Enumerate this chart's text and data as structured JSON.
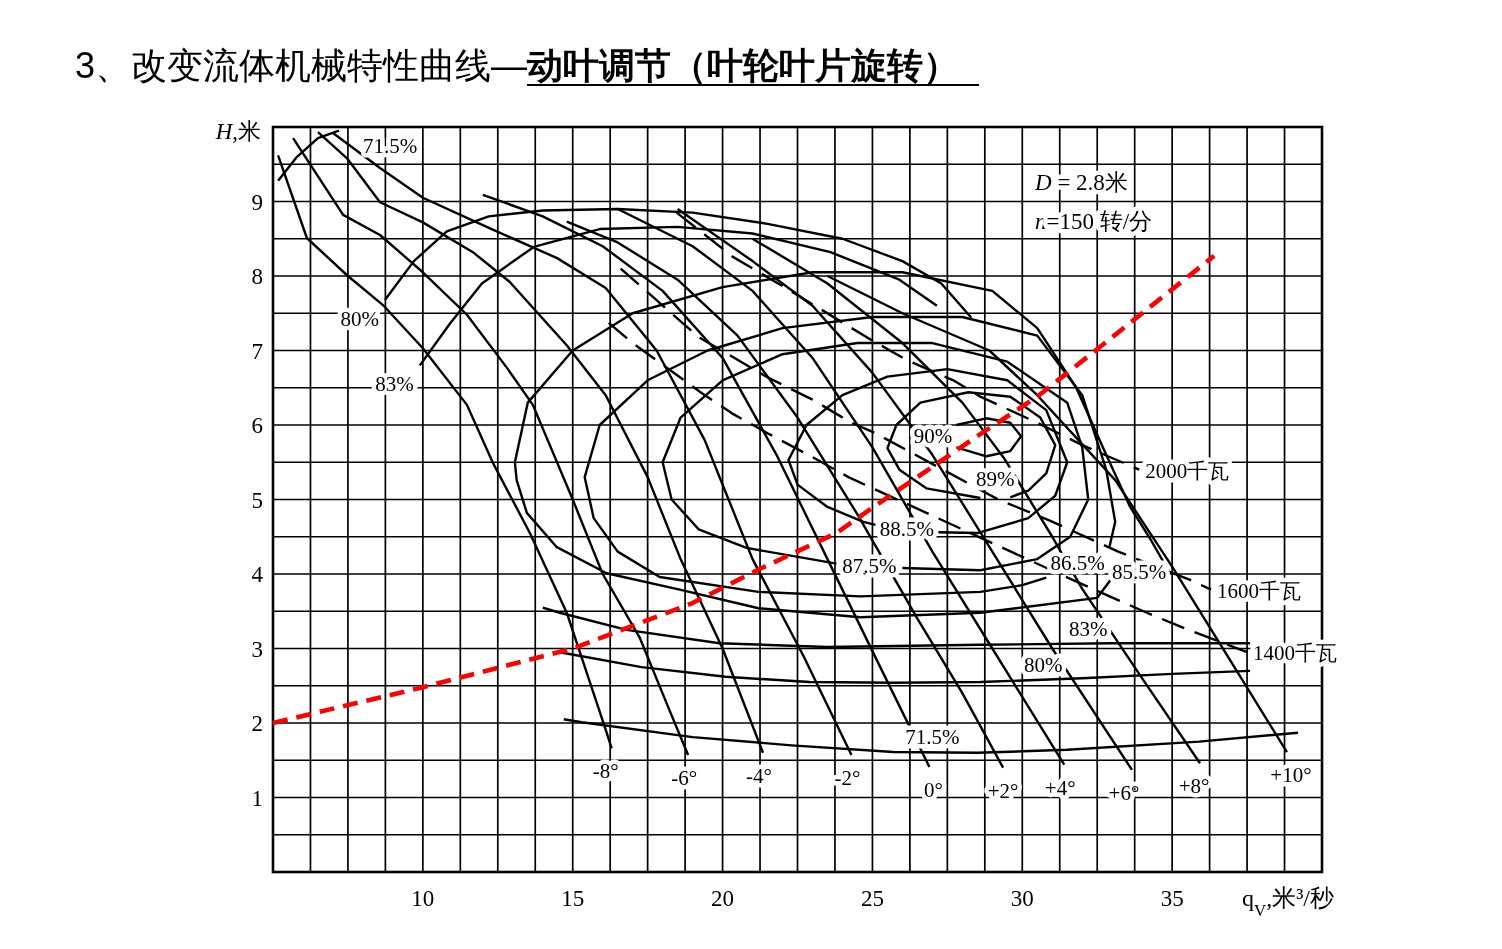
{
  "chart_data": {
    "type": "line",
    "title": "3、改变流体机械特性曲线—**动叶调节（叶轮叶片旋转）**",
    "xlabel": "q$_{V}$,米³/秒",
    "ylabel": "*H*,米",
    "annotations": [
      "*D* = 2.8米",
      "*n*=150 转/分"
    ],
    "xlim": [
      5,
      40
    ],
    "ylim": [
      0,
      10
    ],
    "xticks": [
      {
        "value": 6.25,
        "label": null
      },
      {
        "value": 7.5,
        "label": null
      },
      {
        "value": 8.75,
        "label": null
      },
      10,
      {
        "value": 11.25,
        "label": null
      },
      {
        "value": 12.5,
        "label": null
      },
      {
        "value": 13.75,
        "label": null
      },
      15,
      {
        "value": 16.25,
        "label": null
      },
      {
        "value": 17.5,
        "label": null
      },
      {
        "value": 18.75,
        "label": null
      },
      20,
      {
        "value": 21.25,
        "label": null
      },
      {
        "value": 22.5,
        "label": null
      },
      {
        "value": 23.75,
        "label": null
      },
      25,
      {
        "value": 26.25,
        "label": null
      },
      {
        "value": 27.5,
        "label": null
      },
      {
        "value": 28.75,
        "label": null
      },
      30,
      {
        "value": 31.25,
        "label": null
      },
      {
        "value": 32.5,
        "label": null
      },
      {
        "value": 33.75,
        "label": null
      },
      35,
      {
        "value": 36.25,
        "label": null
      },
      {
        "value": 37.5,
        "label": null
      },
      {
        "value": 38.75,
        "label": null
      }
    ],
    "yticks": [
      {
        "value": 0.5,
        "label": null
      },
      1,
      {
        "value": 1.5,
        "label": null
      },
      2,
      {
        "value": 2.5,
        "label": null
      },
      3,
      {
        "value": 3.5,
        "label": null
      },
      4,
      {
        "value": 4.5,
        "label": null
      },
      5,
      {
        "value": 5.5,
        "label": null
      },
      6,
      {
        "value": 6.5,
        "label": null
      },
      7,
      {
        "value": 7.5,
        "label": null
      },
      8,
      {
        "value": 8.5,
        "label": null
      },
      9,
      {
        "value": 9.5,
        "label": null
      }
    ],
    "grid": true,
    "series": [
      {
        "name": "-8°",
        "color": "#000000",
        "line_style": "solid",
        "x": [
          5.17,
          6.13,
          7.47,
          8.67,
          10.0,
          11.47,
          12.34,
          13.57,
          14.8,
          16.1,
          16.3
        ],
        "values": [
          9.62,
          8.51,
          8.01,
          7.61,
          7.03,
          6.27,
          5.49,
          4.55,
          3.48,
          1.91,
          1.66
        ]
      },
      {
        "name": "-6°",
        "color": "#000000",
        "line_style": "solid",
        "x": [
          5.67,
          7.34,
          8.57,
          10.0,
          11.47,
          12.8,
          13.67,
          15.0,
          16.0,
          17.23,
          18.2,
          18.85
        ],
        "values": [
          9.85,
          8.82,
          8.55,
          8.05,
          7.48,
          6.77,
          6.27,
          5.0,
          4.0,
          3.15,
          2.2,
          1.57
        ]
      },
      {
        "name": "-4°",
        "color": "#000000",
        "line_style": "solid",
        "x": [
          6.5,
          7.47,
          8.57,
          10.0,
          11.67,
          12.9,
          14.8,
          16.1,
          17.5,
          18.6,
          20.0,
          21.35
        ],
        "values": [
          9.93,
          9.58,
          8.99,
          8.72,
          8.32,
          7.92,
          7.07,
          6.4,
          5.3,
          4.2,
          3.0,
          1.6
        ]
      },
      {
        "name": "-2°",
        "color": "#000000",
        "line_style": "solid",
        "x": [
          7.0,
          8.57,
          10.0,
          12.24,
          14.48,
          16.1,
          17.8,
          19.4,
          21.0,
          22.7,
          24.3
        ],
        "values": [
          9.92,
          9.45,
          9.05,
          8.64,
          8.24,
          7.84,
          7.0,
          5.8,
          4.2,
          2.9,
          1.57
        ]
      },
      {
        "name": "0°",
        "color": "#000000",
        "line_style": "solid",
        "x": [
          12.0,
          14.0,
          16.0,
          18.0,
          20.0,
          21.8,
          23.5,
          25.2,
          26.9
        ],
        "values": [
          9.09,
          8.8,
          8.4,
          7.8,
          6.9,
          5.6,
          4.2,
          2.8,
          1.41
        ]
      },
      {
        "name": "+2°",
        "color": "#000000",
        "line_style": "solid",
        "x": [
          14.8,
          16.5,
          18.5,
          20.5,
          22.5,
          24.5,
          26.5,
          28.0,
          29.36
        ],
        "values": [
          8.73,
          8.45,
          7.95,
          7.2,
          6.1,
          4.8,
          3.4,
          2.4,
          1.4
        ]
      },
      {
        "name": "+4°",
        "color": "#000000",
        "line_style": "solid",
        "x": [
          16.5,
          19,
          21,
          23,
          25,
          27,
          29,
          31.4
        ],
        "values": [
          8.9,
          8.4,
          7.8,
          6.9,
          5.7,
          4.3,
          3.0,
          1.44
        ]
      },
      {
        "name": "+6°",
        "color": "#000000",
        "line_style": "solid",
        "x": [
          18.5,
          21,
          23,
          25,
          27,
          29,
          31,
          33.66
        ],
        "values": [
          8.9,
          8.2,
          7.6,
          6.7,
          5.6,
          4.3,
          3.0,
          1.37
        ]
      },
      {
        "name": "+8°",
        "color": "#000000",
        "line_style": "solid",
        "x": [
          21,
          23.5,
          26,
          28,
          29.4,
          31,
          32,
          34,
          35.93
        ],
        "values": [
          8.5,
          7.9,
          7.1,
          6.3,
          5.55,
          4.5,
          3.8,
          2.6,
          1.46
        ]
      },
      {
        "name": "+10°",
        "color": "#000000",
        "line_style": "solid",
        "x": [
          23.5,
          26,
          28.9,
          30.5,
          33.1,
          35,
          37,
          38.83
        ],
        "values": [
          8.0,
          7.5,
          7.0,
          6.4,
          5.26,
          4.1,
          2.8,
          1.61
        ]
      },
      {
        "name": "71.5%",
        "color": "#000000",
        "line_style": "solid",
        "x": [
          5.17,
          5.8,
          6.5,
          7.2
        ],
        "values": [
          9.28,
          9.6,
          9.85,
          9.95
        ]
      },
      {
        "name": "71.5%",
        "color": "#000000",
        "line_style": "solid",
        "x": [
          14.7,
          15.3,
          19.0,
          22.3,
          25.7,
          28.5,
          31.5,
          35.9,
          39.2
        ],
        "values": [
          2.05,
          2.01,
          1.81,
          1.7,
          1.61,
          1.6,
          1.64,
          1.75,
          1.87
        ]
      },
      {
        "name": "80%",
        "color": "#000000",
        "line_style": "solid",
        "x": [
          8.74,
          9.7,
          10.8,
          12.2,
          14,
          16.5,
          19,
          21.5,
          24,
          26,
          27.3,
          28.3
        ],
        "values": [
          7.68,
          8.2,
          8.6,
          8.8,
          8.88,
          8.9,
          8.85,
          8.7,
          8.5,
          8.2,
          7.9,
          7.44
        ]
      },
      {
        "name": "80%",
        "color": "#000000",
        "line_style": "solid",
        "x": [
          14.57,
          17.3,
          20.1,
          22.9,
          25.7,
          28.6,
          32,
          35,
          37.6
        ],
        "values": [
          2.95,
          2.75,
          2.62,
          2.55,
          2.54,
          2.55,
          2.6,
          2.66,
          2.7
        ]
      },
      {
        "name": "83%",
        "color": "#000000",
        "line_style": "solid",
        "x": [
          9.9,
          10.9,
          11.97,
          13.7,
          15.9,
          18.5,
          21.0,
          23.6,
          25.9,
          27.15
        ],
        "values": [
          6.8,
          7.36,
          7.9,
          8.39,
          8.63,
          8.66,
          8.57,
          8.32,
          7.95,
          7.6
        ]
      },
      {
        "name": "83%",
        "color": "#000000",
        "line_style": "solid",
        "x": [
          14.0,
          14.57,
          16.8,
          19.9,
          23.5,
          28.6,
          33,
          37.6
        ],
        "values": [
          3.55,
          3.48,
          3.25,
          3.07,
          3.02,
          3.05,
          3.07,
          3.07
        ]
      },
      {
        "name": "85.5%",
        "color": "#000000",
        "line_style": "solid",
        "x": [
          33.0,
          32.5,
          28.6,
          24.6,
          21.2,
          18.57,
          16.13,
          14.47,
          13.47,
          13.13,
          13.07,
          13.5,
          15,
          17,
          20,
          23,
          26,
          29,
          30.5,
          31.8,
          32.8,
          33.6,
          34.3,
          34.8
        ],
        "values": [
          3.95,
          3.68,
          3.48,
          3.42,
          3.54,
          3.79,
          4.01,
          4.36,
          4.82,
          5.26,
          5.5,
          6.3,
          7.0,
          7.5,
          7.85,
          8.05,
          8.05,
          7.8,
          7.3,
          6.5,
          5.6,
          4.9,
          4.45,
          4.1
        ]
      },
      {
        "name": "86.5%",
        "color": "#000000",
        "line_style": "solid",
        "x": [
          30.8,
          30.0,
          28.6,
          24.6,
          21.2,
          17.9,
          16.5,
          15.7,
          15.4,
          15.9,
          17.5,
          19.5,
          22,
          25,
          28,
          30.5,
          32.0,
          32.8,
          33.1,
          32.9
        ],
        "values": [
          3.95,
          3.85,
          3.76,
          3.7,
          3.76,
          3.96,
          4.3,
          4.75,
          5.3,
          6.0,
          6.6,
          7.0,
          7.3,
          7.45,
          7.45,
          7.2,
          6.4,
          5.4,
          4.7,
          4.35
        ]
      },
      {
        "name": "87.5%",
        "color": "#000000",
        "line_style": "solid",
        "x": [
          26.0,
          28.6,
          30.5,
          31.6,
          32.2,
          32.0,
          31.5,
          29.5,
          27,
          24.5,
          22,
          20,
          18.6,
          18.0,
          18.3,
          19.2,
          20.8,
          23.8
        ],
        "values": [
          4.08,
          4.05,
          4.2,
          4.5,
          5.0,
          5.7,
          6.3,
          6.85,
          7.1,
          7.1,
          6.95,
          6.6,
          6.1,
          5.5,
          5.0,
          4.6,
          4.35,
          4.14
        ]
      },
      {
        "name": "88.5%",
        "color": "#000000",
        "line_style": "solid",
        "x": [
          27.2,
          28.5,
          30.2,
          31.1,
          31.5,
          30.8,
          29.5,
          27.5,
          25.5,
          24.0,
          22.8,
          22.2,
          22.5,
          23.5,
          24.7,
          25.1
        ],
        "values": [
          4.56,
          4.55,
          4.75,
          5.05,
          5.5,
          6.2,
          6.6,
          6.75,
          6.65,
          6.4,
          6.0,
          5.53,
          5.2,
          4.9,
          4.7,
          4.66
        ]
      },
      {
        "name": "89%",
        "color": "#000000",
        "line_style": "solid",
        "x": [
          29.6,
          30.2,
          30.8,
          31.1,
          30.6,
          29.6,
          28.2,
          26.6,
          25.8,
          25.5,
          25.9,
          26.8,
          28.6
        ],
        "values": [
          5.03,
          5.12,
          5.35,
          5.73,
          6.1,
          6.38,
          6.44,
          6.3,
          6.0,
          5.69,
          5.4,
          5.15,
          5.02
        ]
      },
      {
        "name": "90%",
        "color": "#000000",
        "line_style": "solid",
        "x": [
          27.8,
          28.8,
          29.6,
          29.96,
          29.6,
          28.8,
          27.8
        ],
        "values": [
          6.0,
          6.09,
          6.03,
          5.85,
          5.65,
          5.58,
          5.7
        ]
      },
      {
        "name": "2000千瓦",
        "color": "#000000",
        "line_style": "dashed",
        "x": [
          18.47,
          19.33,
          20.33,
          22.23,
          24.8,
          26.15,
          27.7,
          28.6,
          30.5,
          32.0,
          33.9
        ],
        "values": [
          8.85,
          8.58,
          8.26,
          7.81,
          7.18,
          6.87,
          6.6,
          6.38,
          6.03,
          5.73,
          5.4
        ]
      },
      {
        "name": "1600千瓦",
        "color": "#000000",
        "line_style": "dashed",
        "x": [
          16.6,
          17.9,
          19.2,
          20.1,
          21.5,
          23.0,
          24.3,
          25.1,
          29.2,
          30.9,
          33.2,
          35.6,
          36.3
        ],
        "values": [
          8.1,
          7.64,
          7.18,
          6.97,
          6.64,
          6.34,
          6.03,
          5.89,
          5.0,
          4.72,
          4.3,
          3.92,
          3.79
        ]
      },
      {
        "name": "1400千瓦",
        "color": "#000000",
        "line_style": "dashed",
        "x": [
          16.2,
          17.0,
          19.3,
          20.3,
          21.5,
          23.0,
          24.2,
          31.9,
          34.1,
          35.3,
          37.5
        ],
        "values": [
          7.37,
          7.1,
          6.43,
          6.16,
          5.89,
          5.57,
          5.3,
          3.88,
          3.49,
          3.29,
          2.95
        ]
      },
      {
        "color": "#ff0000",
        "line_style": "dashed",
        "x": [
          5,
          10,
          15,
          19,
          21.15,
          23.8,
          25,
          28.5,
          30.5,
          32.6,
          34.0,
          36.4
        ],
        "values": [
          2.0,
          2.48,
          3.0,
          3.61,
          4.05,
          4.55,
          4.89,
          5.85,
          6.38,
          7.05,
          7.5,
          8.27
        ]
      }
    ]
  }
}
